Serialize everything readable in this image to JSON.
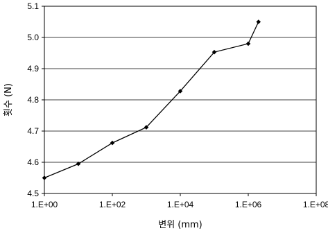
{
  "chart_data": {
    "type": "line",
    "title": "",
    "xlabel": "변위 (mm)",
    "ylabel": "횟수 (N)",
    "x_scale": "log",
    "xlim": [
      1,
      100000000
    ],
    "ylim": [
      4.5,
      5.1
    ],
    "x_ticks": [
      1,
      100,
      10000,
      1000000,
      100000000
    ],
    "x_tick_labels": [
      "1.E+00",
      "1.E+02",
      "1.E+04",
      "1.E+06",
      "1.E+08"
    ],
    "y_ticks": [
      4.5,
      4.6,
      4.7,
      4.8,
      4.9,
      5.0,
      5.1
    ],
    "y_tick_labels": [
      "4.5",
      "4.6",
      "4.7",
      "4.8",
      "4.9",
      "5.0",
      "5.1"
    ],
    "grid": "horizontal",
    "legend": "none",
    "series": [
      {
        "color": "#000000",
        "marker": "diamond",
        "x": [
          1,
          10,
          100,
          1000,
          10000,
          100000,
          1000000,
          2000000
        ],
        "y": [
          4.55,
          4.595,
          4.662,
          4.712,
          4.828,
          4.953,
          4.98,
          5.05
        ]
      }
    ]
  }
}
